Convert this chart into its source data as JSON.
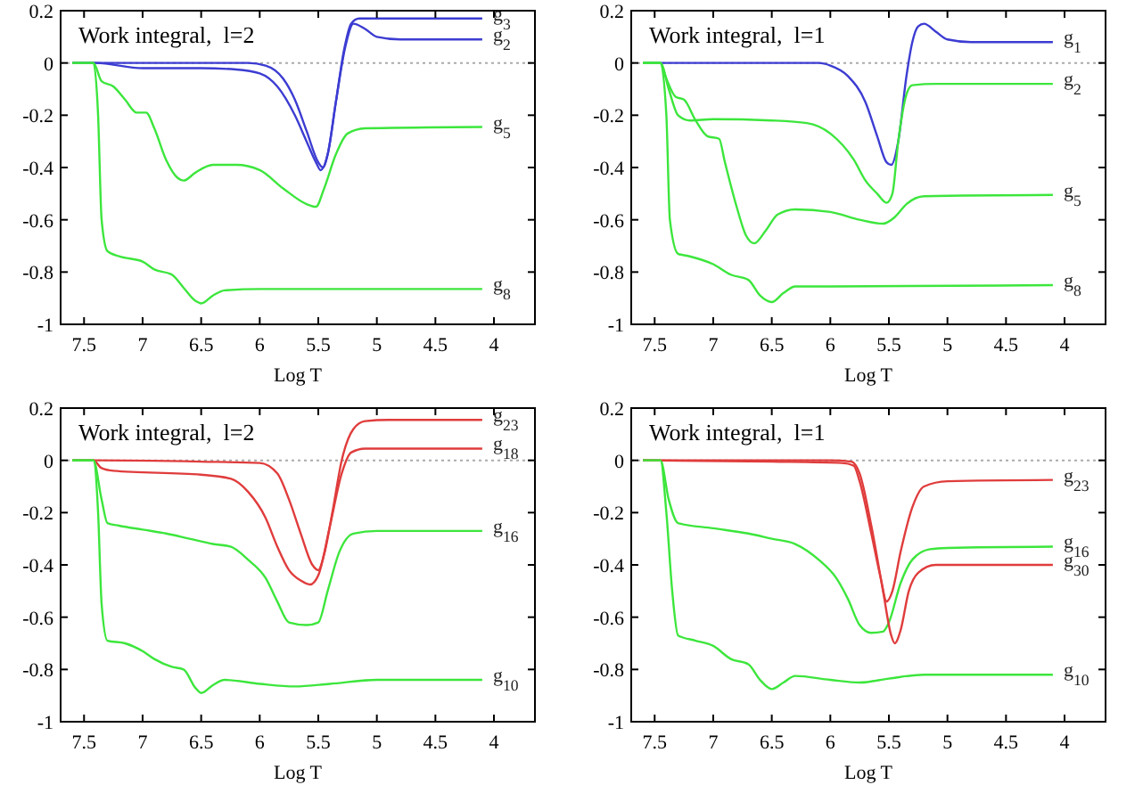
{
  "chart_data": [
    {
      "type": "line",
      "annotations": [
        "Work integral,  l=2"
      ],
      "xlabel": "Log T",
      "xlim": [
        7.7,
        3.65
      ],
      "ylim": [
        -1,
        0.2
      ],
      "xticks": [
        7.5,
        7,
        6.5,
        6,
        5.5,
        5,
        4.5,
        4
      ],
      "yticks": [
        -1,
        -0.8,
        -0.6,
        -0.4,
        -0.2,
        0,
        0.2
      ],
      "ref_lines": [
        {
          "axis": "y",
          "value": 0,
          "color": "#aaaaaa",
          "line_style": "dotted"
        }
      ],
      "series": [
        {
          "name": "g$_{3}$",
          "color": "#3c3cd2",
          "x": [
            7.6,
            7.0,
            6.5,
            6.1,
            5.95,
            5.8,
            5.7,
            5.6,
            5.5,
            5.46,
            5.42,
            5.35,
            5.28,
            5.22,
            5.15,
            4.8,
            4.1
          ],
          "values": [
            0,
            0,
            0,
            0,
            -0.01,
            -0.06,
            -0.14,
            -0.26,
            -0.38,
            -0.4,
            -0.35,
            -0.15,
            0.05,
            0.15,
            0.17,
            0.17,
            0.17
          ]
        },
        {
          "name": "g$_{2}$",
          "color": "#3c3cd2",
          "x": [
            7.6,
            7.4,
            7.0,
            6.5,
            6.2,
            6.0,
            5.85,
            5.7,
            5.6,
            5.52,
            5.48,
            5.42,
            5.35,
            5.27,
            5.2,
            5.1,
            5.0,
            4.8,
            4.1
          ],
          "values": [
            0,
            0,
            -0.02,
            -0.02,
            -0.025,
            -0.04,
            -0.09,
            -0.2,
            -0.3,
            -0.38,
            -0.41,
            -0.35,
            -0.15,
            0.06,
            0.15,
            0.13,
            0.1,
            0.09,
            0.09
          ]
        },
        {
          "name": "g$_{5}$",
          "color": "#3ce63c",
          "x": [
            7.6,
            7.42,
            7.35,
            7.25,
            7.15,
            7.05,
            6.97,
            6.9,
            6.8,
            6.7,
            6.65,
            6.55,
            6.4,
            6.2,
            6.0,
            5.8,
            5.6,
            5.52,
            5.45,
            5.35,
            5.25,
            5.1,
            4.1
          ],
          "values": [
            0,
            0,
            -0.07,
            -0.09,
            -0.14,
            -0.19,
            -0.19,
            -0.25,
            -0.37,
            -0.44,
            -0.45,
            -0.42,
            -0.39,
            -0.39,
            -0.41,
            -0.48,
            -0.54,
            -0.55,
            -0.48,
            -0.35,
            -0.27,
            -0.25,
            -0.245
          ]
        },
        {
          "name": "g$_{8}$",
          "color": "#3ce63c",
          "x": [
            7.6,
            7.42,
            7.38,
            7.35,
            7.3,
            7.2,
            7.0,
            6.9,
            6.75,
            6.65,
            6.55,
            6.5,
            6.4,
            6.3,
            6.0,
            4.1
          ],
          "values": [
            0,
            0,
            -0.2,
            -0.6,
            -0.72,
            -0.74,
            -0.76,
            -0.79,
            -0.81,
            -0.86,
            -0.91,
            -0.92,
            -0.89,
            -0.87,
            -0.865,
            -0.865
          ]
        }
      ]
    },
    {
      "type": "line",
      "annotations": [
        "Work integral,  l=1"
      ],
      "xlabel": "Log T",
      "xlim": [
        7.7,
        3.65
      ],
      "ylim": [
        -1,
        0.2
      ],
      "xticks": [
        7.5,
        7,
        6.5,
        6,
        5.5,
        5,
        4.5,
        4
      ],
      "yticks": [
        -1,
        -0.8,
        -0.6,
        -0.4,
        -0.2,
        0,
        0.2
      ],
      "ref_lines": [
        {
          "axis": "y",
          "value": 0,
          "color": "#aaaaaa",
          "line_style": "dotted"
        }
      ],
      "series": [
        {
          "name": "g$_{1}$",
          "color": "#3c3cd2",
          "x": [
            7.6,
            6.1,
            6.0,
            5.85,
            5.7,
            5.6,
            5.52,
            5.48,
            5.42,
            5.35,
            5.3,
            5.25,
            5.2,
            5.1,
            5.0,
            4.8,
            4.1
          ],
          "values": [
            0,
            0,
            -0.01,
            -0.05,
            -0.15,
            -0.28,
            -0.38,
            -0.39,
            -0.3,
            -0.05,
            0.08,
            0.14,
            0.15,
            0.12,
            0.09,
            0.08,
            0.08
          ]
        },
        {
          "name": "g$_{2}$",
          "color": "#3ce63c",
          "x": [
            7.6,
            7.45,
            7.38,
            7.3,
            7.2,
            7.0,
            6.5,
            6.2,
            6.0,
            5.8,
            5.7,
            5.6,
            5.52,
            5.47,
            5.42,
            5.35,
            5.3,
            5.1,
            4.1
          ],
          "values": [
            0,
            0,
            -0.1,
            -0.2,
            -0.22,
            -0.215,
            -0.22,
            -0.23,
            -0.27,
            -0.37,
            -0.45,
            -0.5,
            -0.535,
            -0.5,
            -0.3,
            -0.12,
            -0.085,
            -0.08,
            -0.08
          ]
        },
        {
          "name": "g$_{5}$",
          "color": "#3ce63c",
          "x": [
            7.6,
            7.45,
            7.4,
            7.32,
            7.25,
            7.15,
            7.05,
            6.95,
            6.9,
            6.8,
            6.72,
            6.65,
            6.55,
            6.45,
            6.3,
            6.0,
            5.75,
            5.55,
            5.45,
            5.35,
            5.2,
            4.1
          ],
          "values": [
            0,
            0,
            -0.06,
            -0.13,
            -0.14,
            -0.22,
            -0.28,
            -0.29,
            -0.38,
            -0.55,
            -0.66,
            -0.69,
            -0.64,
            -0.58,
            -0.56,
            -0.57,
            -0.6,
            -0.615,
            -0.59,
            -0.54,
            -0.51,
            -0.505
          ]
        },
        {
          "name": "g$_{8}$",
          "color": "#3ce63c",
          "x": [
            7.6,
            7.45,
            7.4,
            7.37,
            7.3,
            7.2,
            7.0,
            6.85,
            6.7,
            6.6,
            6.5,
            6.4,
            6.3,
            6.0,
            4.1
          ],
          "values": [
            0,
            0,
            -0.2,
            -0.6,
            -0.73,
            -0.74,
            -0.77,
            -0.81,
            -0.83,
            -0.89,
            -0.915,
            -0.88,
            -0.855,
            -0.855,
            -0.85
          ]
        }
      ]
    },
    {
      "type": "line",
      "annotations": [
        "Work integral,  l=2"
      ],
      "xlabel": "Log T",
      "xlim": [
        7.7,
        3.65
      ],
      "ylim": [
        -1,
        0.2
      ],
      "xticks": [
        7.5,
        7,
        6.5,
        6,
        5.5,
        5,
        4.5,
        4
      ],
      "yticks": [
        -1,
        -0.8,
        -0.6,
        -0.4,
        -0.2,
        0,
        0.2
      ],
      "ref_lines": [
        {
          "axis": "y",
          "value": 0,
          "color": "#aaaaaa",
          "line_style": "dotted"
        }
      ],
      "series": [
        {
          "name": "g$_{23}$",
          "color": "#e03c3c",
          "x": [
            7.6,
            7.4,
            6.5,
            6.0,
            5.85,
            5.75,
            5.65,
            5.55,
            5.5,
            5.45,
            5.38,
            5.3,
            5.2,
            5.1,
            4.9,
            4.1
          ],
          "values": [
            0,
            0,
            -0.005,
            -0.01,
            -0.05,
            -0.15,
            -0.28,
            -0.4,
            -0.42,
            -0.36,
            -0.2,
            0,
            0.12,
            0.15,
            0.155,
            0.155
          ]
        },
        {
          "name": "g$_{18}$",
          "color": "#e03c3c",
          "x": [
            7.6,
            7.42,
            7.35,
            7.25,
            6.5,
            6.25,
            6.1,
            5.95,
            5.85,
            5.75,
            5.65,
            5.57,
            5.5,
            5.4,
            5.3,
            5.22,
            5.1,
            4.1
          ],
          "values": [
            0,
            0,
            -0.03,
            -0.04,
            -0.055,
            -0.07,
            -0.12,
            -0.22,
            -0.33,
            -0.42,
            -0.46,
            -0.475,
            -0.44,
            -0.25,
            -0.05,
            0.03,
            0.045,
            0.045
          ]
        },
        {
          "name": "g$_{16}$",
          "color": "#3ce63c",
          "x": [
            7.6,
            7.42,
            7.35,
            7.3,
            7.2,
            7.0,
            6.8,
            6.6,
            6.4,
            6.25,
            6.1,
            5.95,
            5.85,
            5.75,
            5.6,
            5.5,
            5.42,
            5.32,
            5.2,
            5.0,
            4.1
          ],
          "values": [
            0,
            0,
            -0.15,
            -0.24,
            -0.25,
            -0.265,
            -0.28,
            -0.3,
            -0.32,
            -0.33,
            -0.38,
            -0.45,
            -0.54,
            -0.62,
            -0.63,
            -0.62,
            -0.5,
            -0.35,
            -0.28,
            -0.27,
            -0.27
          ]
        },
        {
          "name": "g$_{10}$",
          "color": "#3ce63c",
          "x": [
            7.6,
            7.42,
            7.38,
            7.35,
            7.3,
            7.15,
            7.0,
            6.9,
            6.75,
            6.65,
            6.55,
            6.5,
            6.4,
            6.3,
            6.0,
            5.7,
            5.4,
            5.0,
            4.1
          ],
          "values": [
            0,
            0,
            -0.2,
            -0.55,
            -0.69,
            -0.7,
            -0.73,
            -0.76,
            -0.79,
            -0.8,
            -0.87,
            -0.89,
            -0.86,
            -0.84,
            -0.855,
            -0.865,
            -0.855,
            -0.84,
            -0.84
          ]
        }
      ]
    },
    {
      "type": "line",
      "annotations": [
        "Work integral,  l=1"
      ],
      "xlabel": "Log T",
      "xlim": [
        7.7,
        3.65
      ],
      "ylim": [
        -1,
        0.2
      ],
      "xticks": [
        7.5,
        7,
        6.5,
        6,
        5.5,
        5,
        4.5,
        4
      ],
      "yticks": [
        -1,
        -0.8,
        -0.6,
        -0.4,
        -0.2,
        0,
        0.2
      ],
      "ref_lines": [
        {
          "axis": "y",
          "value": 0,
          "color": "#aaaaaa",
          "line_style": "dotted"
        }
      ],
      "series": [
        {
          "name": "g$_{23}$",
          "color": "#e03c3c",
          "x": [
            7.6,
            6.5,
            5.9,
            5.8,
            5.75,
            5.65,
            5.57,
            5.52,
            5.47,
            5.4,
            5.3,
            5.2,
            5.0,
            4.1
          ],
          "values": [
            0,
            -0.005,
            -0.01,
            -0.02,
            -0.08,
            -0.28,
            -0.45,
            -0.54,
            -0.5,
            -0.35,
            -0.18,
            -0.1,
            -0.08,
            -0.075
          ]
        },
        {
          "name": "g$_{16}$",
          "color": "#3ce63c",
          "x": [
            7.6,
            7.45,
            7.38,
            7.3,
            7.0,
            6.7,
            6.5,
            6.3,
            6.1,
            5.95,
            5.85,
            5.75,
            5.65,
            5.55,
            5.5,
            5.4,
            5.3,
            5.15,
            5.0,
            4.1
          ],
          "values": [
            0,
            0,
            -0.15,
            -0.24,
            -0.26,
            -0.28,
            -0.3,
            -0.32,
            -0.38,
            -0.45,
            -0.53,
            -0.63,
            -0.66,
            -0.655,
            -0.62,
            -0.47,
            -0.38,
            -0.34,
            -0.335,
            -0.33
          ]
        },
        {
          "name": "g$_{30}$",
          "color": "#e03c3c",
          "x": [
            7.6,
            6.0,
            5.82,
            5.75,
            5.65,
            5.55,
            5.48,
            5.45,
            5.4,
            5.33,
            5.25,
            5.1,
            4.1
          ],
          "values": [
            0,
            0,
            -0.005,
            -0.05,
            -0.25,
            -0.5,
            -0.67,
            -0.7,
            -0.65,
            -0.5,
            -0.43,
            -0.4,
            -0.4
          ]
        },
        {
          "name": "g$_{10}$",
          "color": "#3ce63c",
          "x": [
            7.6,
            7.45,
            7.4,
            7.35,
            7.3,
            7.15,
            7.0,
            6.85,
            6.7,
            6.6,
            6.5,
            6.4,
            6.3,
            6.0,
            5.75,
            5.5,
            5.2,
            4.1
          ],
          "values": [
            0,
            0,
            -0.2,
            -0.5,
            -0.67,
            -0.69,
            -0.71,
            -0.76,
            -0.78,
            -0.84,
            -0.875,
            -0.85,
            -0.825,
            -0.84,
            -0.85,
            -0.835,
            -0.82,
            -0.82
          ]
        }
      ]
    }
  ]
}
